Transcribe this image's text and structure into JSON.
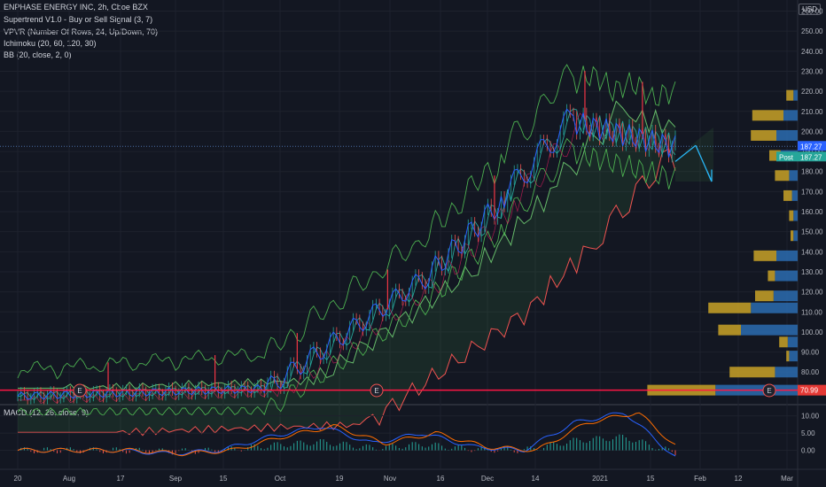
{
  "header": {
    "symbol_line": "ENPHASE ENERGY INC, 2h, Cboe BZX",
    "indicators": [
      "Supertrend V1.0 - Buy or Sell Signal (3, 7)",
      "VPVR (Number Of Rows, 24, Up/Down, 70)",
      "Ichimoku (20, 60, 120, 30)",
      "BB (20, close, 2, 0)"
    ],
    "currency": "USD"
  },
  "price_axis": {
    "ticks": [
      "260.00",
      "250.00",
      "240.00",
      "230.00",
      "220.00",
      "210.00",
      "200.00",
      "190.00",
      "180.00",
      "170.00",
      "160.00",
      "150.00",
      "140.00",
      "130.00",
      "120.00",
      "110.00",
      "100.00",
      "90.00",
      "80.00"
    ],
    "tick_values": [
      260,
      250,
      240,
      230,
      220,
      210,
      200,
      190,
      180,
      170,
      160,
      150,
      140,
      130,
      120,
      110,
      100,
      90,
      80
    ],
    "last_price_label": "187.27",
    "post_label": "Post",
    "post_price_label": "187.27",
    "marked_price_label": "70.99",
    "marked_price": 70.99,
    "last_price": 187.27
  },
  "macd": {
    "label": "MACD (12, 26, close, 9)",
    "ticks": [
      "10.00",
      "5.00",
      "0.00"
    ],
    "tick_values": [
      10,
      5,
      0
    ]
  },
  "time_axis": {
    "labels": [
      "20",
      "Aug",
      "17",
      "Sep",
      "15",
      "Oct",
      "19",
      "Nov",
      "16",
      "Dec",
      "14",
      "2021",
      "15",
      "Feb",
      "12",
      "Mar"
    ]
  },
  "earnings_marker": "E",
  "colors": {
    "background": "#131722",
    "price_line": "#2962ff",
    "supertrend_sell": "#f23645",
    "ichimoku_fast": "#26a69a",
    "bb_band": "#4caf50",
    "volume_up": "#2b6cb0",
    "volume_down": "#c9a227",
    "marker_line": "#ff1744",
    "forecast_arrow": "#29b6f6"
  },
  "chart_data": {
    "type": "line",
    "title": "ENPHASE ENERGY INC, 2h, Cboe BZX",
    "ylim": [
      62,
      262
    ],
    "x": [
      "20",
      "Aug",
      "17",
      "Sep",
      "15",
      "Oct",
      "19",
      "Nov",
      "16",
      "Dec",
      "14",
      "2021",
      "15",
      "Feb",
      "12",
      "Mar"
    ],
    "series": [
      {
        "name": "close",
        "values": [
          68,
          70,
          72,
          72,
          71,
          90,
          105,
          103,
          125,
          135,
          138,
          180,
          205,
          194,
          null,
          null
        ]
      },
      {
        "name": "BB (20, close, 2, 0)",
        "values": [
          73,
          72,
          74,
          76,
          74,
          100,
          115,
          112,
          133,
          140,
          150,
          190,
          218,
          203,
          null,
          null
        ]
      }
    ],
    "volume_profile": {
      "price_levels": [
        218,
        208,
        198,
        188,
        178,
        168,
        158,
        148,
        138,
        128,
        118,
        112,
        101,
        95,
        88,
        80,
        71
      ],
      "up_volume": [
        3,
        10,
        15,
        12,
        6,
        4,
        3,
        3,
        15,
        16,
        17,
        33,
        40,
        7,
        6,
        16,
        58
      ],
      "down_volume": [
        5,
        22,
        18,
        8,
        10,
        6,
        3,
        2,
        16,
        5,
        13,
        30,
        16,
        6,
        2,
        32,
        48
      ]
    },
    "macd": {
      "ylim": [
        -5,
        13
      ],
      "values": [
        0,
        0,
        0,
        -1,
        0,
        4,
        7,
        2,
        5,
        1,
        0,
        8,
        11,
        -2,
        null,
        null
      ]
    }
  }
}
